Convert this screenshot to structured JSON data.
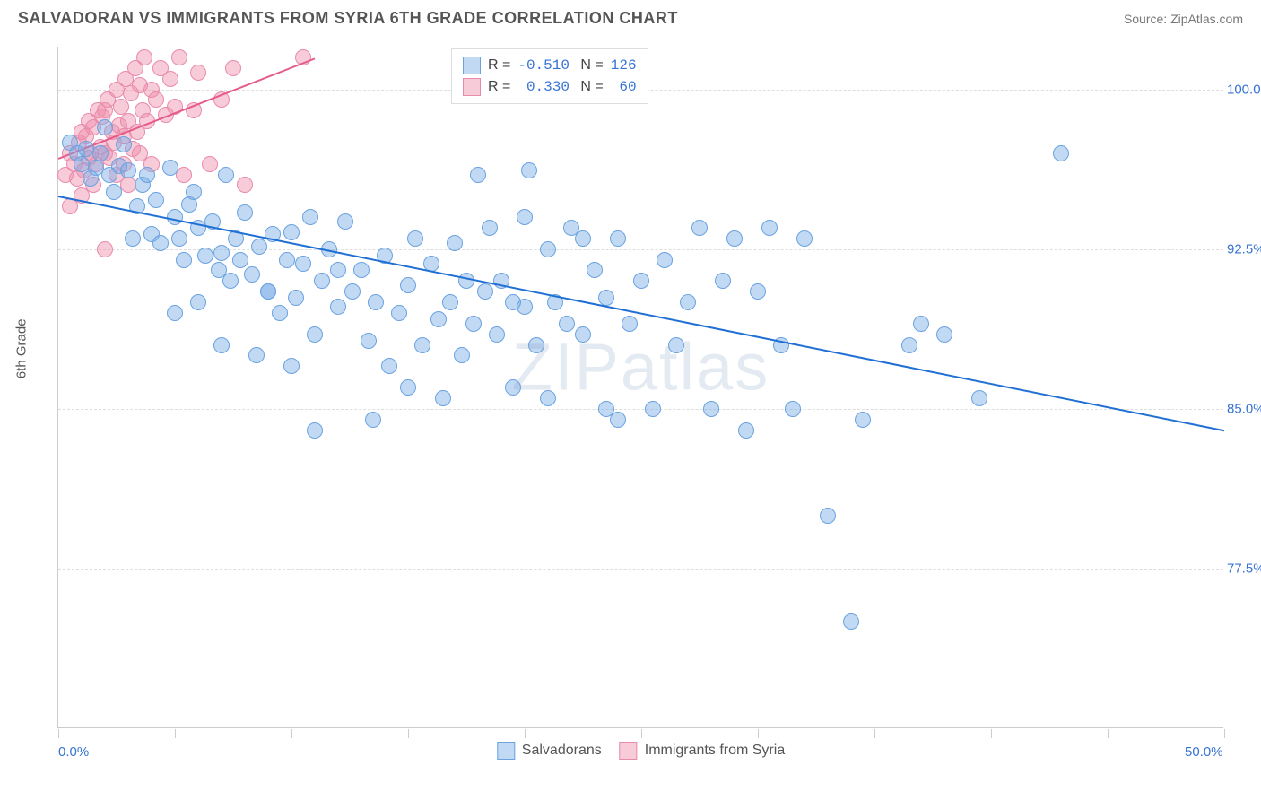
{
  "header": {
    "title": "SALVADORAN VS IMMIGRANTS FROM SYRIA 6TH GRADE CORRELATION CHART",
    "source_label": "Source:",
    "source_name": "ZipAtlas.com"
  },
  "chart": {
    "type": "scatter",
    "ylabel": "6th Grade",
    "xlim": [
      0,
      50
    ],
    "ylim": [
      70,
      102
    ],
    "y_ticks": [
      {
        "v": 77.5,
        "label": "77.5%"
      },
      {
        "v": 85.0,
        "label": "85.0%"
      },
      {
        "v": 92.5,
        "label": "92.5%"
      },
      {
        "v": 100.0,
        "label": "100.0%"
      }
    ],
    "x_ticks": [
      0,
      5,
      10,
      15,
      20,
      25,
      30,
      35,
      40,
      45,
      50
    ],
    "x_axis_labels": [
      {
        "v": 0,
        "label": "0.0%"
      },
      {
        "v": 50,
        "label": "50.0%"
      }
    ],
    "x_label_color": "#3773d4",
    "y_label_color": "#3773d4",
    "grid_color": "#dddddd",
    "background_color": "#ffffff",
    "watermark": {
      "text": "ZIPatlas",
      "color": "rgba(120,150,190,0.20)"
    },
    "series": {
      "salvadorans": {
        "label": "Salvadorans",
        "color_fill": "rgba(120,170,230,0.45)",
        "color_stroke": "#6aa3e0",
        "marker_radius": 9,
        "R": "-0.510",
        "N": "126",
        "trend": {
          "x1": 0,
          "y1": 95.0,
          "x2": 50,
          "y2": 84.0,
          "color": "#1f6fd4",
          "width": 2
        },
        "points": [
          [
            0.5,
            97.5
          ],
          [
            0.8,
            97.0
          ],
          [
            1.0,
            96.5
          ],
          [
            1.2,
            97.2
          ],
          [
            1.4,
            95.8
          ],
          [
            1.6,
            96.3
          ],
          [
            1.8,
            97.0
          ],
          [
            2.0,
            98.2
          ],
          [
            2.2,
            96.0
          ],
          [
            2.4,
            95.2
          ],
          [
            2.6,
            96.4
          ],
          [
            2.8,
            97.4
          ],
          [
            3.0,
            96.2
          ],
          [
            3.2,
            93.0
          ],
          [
            3.4,
            94.5
          ],
          [
            3.6,
            95.5
          ],
          [
            3.8,
            96.0
          ],
          [
            4.0,
            93.2
          ],
          [
            4.2,
            94.8
          ],
          [
            4.4,
            92.8
          ],
          [
            4.8,
            96.3
          ],
          [
            5.0,
            94.0
          ],
          [
            5.2,
            93.0
          ],
          [
            5.4,
            92.0
          ],
          [
            5.6,
            94.6
          ],
          [
            5.8,
            95.2
          ],
          [
            6.0,
            93.5
          ],
          [
            6.3,
            92.2
          ],
          [
            6.6,
            93.8
          ],
          [
            6.9,
            91.5
          ],
          [
            7.0,
            92.3
          ],
          [
            7.2,
            96.0
          ],
          [
            7.4,
            91.0
          ],
          [
            7.6,
            93.0
          ],
          [
            7.8,
            92.0
          ],
          [
            8.0,
            94.2
          ],
          [
            8.3,
            91.3
          ],
          [
            8.6,
            92.6
          ],
          [
            9.0,
            90.5
          ],
          [
            9.2,
            93.2
          ],
          [
            9.5,
            89.5
          ],
          [
            9.8,
            92.0
          ],
          [
            10.0,
            93.3
          ],
          [
            10.2,
            90.2
          ],
          [
            10.5,
            91.8
          ],
          [
            10.8,
            94.0
          ],
          [
            11.0,
            88.5
          ],
          [
            11.3,
            91.0
          ],
          [
            11.6,
            92.5
          ],
          [
            12.0,
            89.8
          ],
          [
            12.3,
            93.8
          ],
          [
            12.6,
            90.5
          ],
          [
            13.0,
            91.5
          ],
          [
            13.3,
            88.2
          ],
          [
            13.6,
            90.0
          ],
          [
            14.0,
            92.2
          ],
          [
            14.2,
            87.0
          ],
          [
            14.6,
            89.5
          ],
          [
            15.0,
            90.8
          ],
          [
            15.3,
            93.0
          ],
          [
            15.6,
            88.0
          ],
          [
            16.0,
            91.8
          ],
          [
            16.3,
            89.2
          ],
          [
            16.8,
            90.0
          ],
          [
            17.0,
            92.8
          ],
          [
            17.3,
            87.5
          ],
          [
            17.8,
            89.0
          ],
          [
            18.0,
            96.0
          ],
          [
            18.3,
            90.5
          ],
          [
            18.8,
            88.5
          ],
          [
            19.0,
            91.0
          ],
          [
            19.5,
            86.0
          ],
          [
            20.0,
            89.8
          ],
          [
            20.2,
            96.2
          ],
          [
            20.5,
            88.0
          ],
          [
            21.0,
            92.5
          ],
          [
            21.3,
            90.0
          ],
          [
            21.8,
            89.0
          ],
          [
            22.0,
            93.5
          ],
          [
            22.5,
            88.5
          ],
          [
            23.0,
            91.5
          ],
          [
            23.5,
            90.2
          ],
          [
            24.0,
            93.0
          ],
          [
            24.5,
            89.0
          ],
          [
            25.0,
            91.0
          ],
          [
            25.5,
            85.0
          ],
          [
            26.0,
            92.0
          ],
          [
            26.5,
            88.0
          ],
          [
            27.0,
            90.0
          ],
          [
            27.5,
            93.5
          ],
          [
            28.0,
            85.0
          ],
          [
            28.5,
            91.0
          ],
          [
            29.0,
            93.0
          ],
          [
            29.5,
            84.0
          ],
          [
            30.0,
            90.5
          ],
          [
            30.5,
            93.5
          ],
          [
            31.0,
            88.0
          ],
          [
            31.5,
            85.0
          ],
          [
            32.0,
            93.0
          ],
          [
            33.0,
            80.0
          ],
          [
            24.0,
            84.5
          ],
          [
            13.5,
            84.5
          ],
          [
            11.0,
            84.0
          ],
          [
            34.0,
            75.0
          ],
          [
            34.5,
            84.5
          ],
          [
            36.5,
            88.0
          ],
          [
            38.0,
            88.5
          ],
          [
            39.5,
            85.5
          ],
          [
            43.0,
            97.0
          ],
          [
            37.0,
            89.0
          ],
          [
            5.0,
            89.5
          ],
          [
            6.0,
            90.0
          ],
          [
            15.0,
            86.0
          ],
          [
            16.5,
            85.5
          ],
          [
            17.5,
            91.0
          ],
          [
            18.5,
            93.5
          ],
          [
            19.5,
            90.0
          ],
          [
            20.0,
            94.0
          ],
          [
            21.0,
            85.5
          ],
          [
            22.5,
            93.0
          ],
          [
            23.5,
            85.0
          ],
          [
            10.0,
            87.0
          ],
          [
            8.5,
            87.5
          ],
          [
            7.0,
            88.0
          ],
          [
            9.0,
            90.5
          ],
          [
            12.0,
            91.5
          ]
        ]
      },
      "syria": {
        "label": "Immigrants from Syria",
        "color_fill": "rgba(240,140,170,0.45)",
        "color_stroke": "#e88aac",
        "marker_radius": 9,
        "R": "0.330",
        "N": "60",
        "trend": {
          "x1": 0,
          "y1": 96.8,
          "x2": 11,
          "y2": 101.5,
          "color": "#e65a8a",
          "width": 2
        },
        "points": [
          [
            0.3,
            96.0
          ],
          [
            0.5,
            97.0
          ],
          [
            0.7,
            96.5
          ],
          [
            0.9,
            97.5
          ],
          [
            1.0,
            98.0
          ],
          [
            1.1,
            96.2
          ],
          [
            1.2,
            97.8
          ],
          [
            1.3,
            98.5
          ],
          [
            1.4,
            97.0
          ],
          [
            1.5,
            98.2
          ],
          [
            1.6,
            96.5
          ],
          [
            1.7,
            99.0
          ],
          [
            1.8,
            97.3
          ],
          [
            1.9,
            98.7
          ],
          [
            2.0,
            97.0
          ],
          [
            2.1,
            99.5
          ],
          [
            2.2,
            96.8
          ],
          [
            2.3,
            98.0
          ],
          [
            2.4,
            97.5
          ],
          [
            2.5,
            100.0
          ],
          [
            2.6,
            98.3
          ],
          [
            2.7,
            99.2
          ],
          [
            2.8,
            97.8
          ],
          [
            2.9,
            100.5
          ],
          [
            3.0,
            98.5
          ],
          [
            3.1,
            99.8
          ],
          [
            3.2,
            97.2
          ],
          [
            3.3,
            101.0
          ],
          [
            3.4,
            98.0
          ],
          [
            3.5,
            100.2
          ],
          [
            3.6,
            99.0
          ],
          [
            3.7,
            101.5
          ],
          [
            3.8,
            98.5
          ],
          [
            4.0,
            100.0
          ],
          [
            4.2,
            99.5
          ],
          [
            4.4,
            101.0
          ],
          [
            4.6,
            98.8
          ],
          [
            4.8,
            100.5
          ],
          [
            5.0,
            99.2
          ],
          [
            5.2,
            101.5
          ],
          [
            5.4,
            96.0
          ],
          [
            5.8,
            99.0
          ],
          [
            6.0,
            100.8
          ],
          [
            6.5,
            96.5
          ],
          [
            7.0,
            99.5
          ],
          [
            7.5,
            101.0
          ],
          [
            8.0,
            95.5
          ],
          [
            10.5,
            101.5
          ],
          [
            2.0,
            92.5
          ],
          [
            4.0,
            96.5
          ],
          [
            1.0,
            95.0
          ],
          [
            1.5,
            95.5
          ],
          [
            2.5,
            96.0
          ],
          [
            3.0,
            95.5
          ],
          [
            0.5,
            94.5
          ],
          [
            0.8,
            95.8
          ],
          [
            1.3,
            96.8
          ],
          [
            2.0,
            99.0
          ],
          [
            2.8,
            96.5
          ],
          [
            3.5,
            97.0
          ]
        ]
      }
    },
    "legend_bottom": [
      {
        "key": "salvadorans"
      },
      {
        "key": "syria"
      }
    ]
  }
}
